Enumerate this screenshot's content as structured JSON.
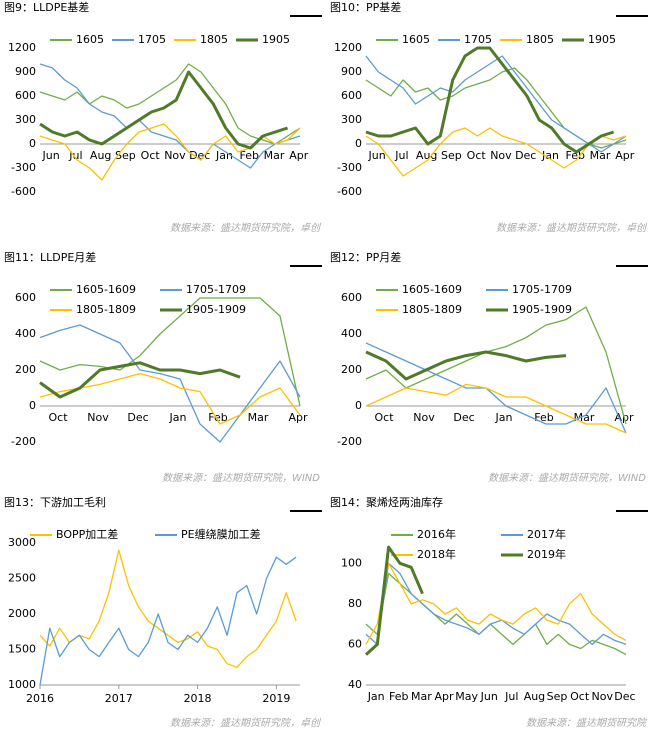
{
  "chart_data": [
    {
      "type": "line",
      "title": "图9：LLDPE基差",
      "source": "数据来源：盛达期货研究院，卓创",
      "categories": [
        "Jun",
        null,
        "Jul",
        null,
        "Aug",
        null,
        "Sep",
        null,
        "Oct",
        null,
        "Nov",
        null,
        "Dec",
        null,
        "Jan",
        null,
        "Feb",
        null,
        "Mar",
        null,
        "Apr",
        null
      ],
      "ylim": [
        -600,
        1200
      ],
      "yticks": [
        -600,
        -300,
        0,
        300,
        600,
        900,
        1200
      ],
      "series": [
        {
          "name": "1605",
          "color": "#70ad47",
          "values": [
            650,
            600,
            550,
            650,
            500,
            600,
            550,
            450,
            500,
            600,
            700,
            800,
            1000,
            900,
            700,
            500,
            200,
            100,
            50,
            0,
            100,
            200
          ]
        },
        {
          "name": "1705",
          "color": "#5b9bd5",
          "values": [
            1000,
            950,
            800,
            700,
            500,
            400,
            350,
            200,
            300,
            150,
            100,
            50,
            -100,
            -200,
            0,
            -100,
            -200,
            -300,
            -100,
            0,
            50,
            100
          ]
        },
        {
          "name": "1805",
          "color": "#ffc000",
          "values": [
            100,
            50,
            0,
            -200,
            -300,
            -450,
            -200,
            0,
            150,
            200,
            250,
            100,
            -100,
            -200,
            0,
            100,
            -100,
            -50,
            100,
            0,
            50,
            200
          ]
        },
        {
          "name": "1905",
          "color": "#4f7a28",
          "width": 3,
          "values": [
            250,
            150,
            100,
            150,
            50,
            0,
            100,
            200,
            300,
            400,
            450,
            550,
            900,
            700,
            500,
            200,
            0,
            -50,
            100,
            150,
            200,
            null
          ]
        }
      ]
    },
    {
      "type": "line",
      "title": "图10：PP基差",
      "source": "数据来源：盛达期货研究院，卓创",
      "categories": [
        "Jun",
        null,
        "Jul",
        null,
        "Aug",
        null,
        "Sep",
        null,
        "Oct",
        null,
        "Nov",
        null,
        "Dec",
        null,
        "Jan",
        null,
        "Feb",
        null,
        "Mar",
        null,
        "Apr",
        null
      ],
      "ylim": [
        -600,
        1200
      ],
      "yticks": [
        -600,
        -300,
        0,
        300,
        600,
        900,
        1200
      ],
      "series": [
        {
          "name": "1605",
          "color": "#70ad47",
          "values": [
            800,
            700,
            600,
            800,
            650,
            700,
            550,
            600,
            700,
            750,
            800,
            900,
            950,
            800,
            600,
            400,
            200,
            100,
            0,
            -50,
            0,
            50
          ]
        },
        {
          "name": "1705",
          "color": "#5b9bd5",
          "values": [
            1100,
            900,
            800,
            700,
            500,
            600,
            700,
            650,
            800,
            900,
            1000,
            1100,
            900,
            700,
            500,
            300,
            200,
            100,
            0,
            -100,
            0,
            100
          ]
        },
        {
          "name": "1805",
          "color": "#ffc000",
          "values": [
            100,
            0,
            -200,
            -400,
            -300,
            -200,
            0,
            150,
            200,
            100,
            200,
            100,
            50,
            0,
            -100,
            -200,
            -300,
            -200,
            0,
            100,
            50,
            100
          ]
        },
        {
          "name": "1905",
          "color": "#4f7a28",
          "width": 3,
          "values": [
            150,
            100,
            100,
            150,
            200,
            0,
            100,
            800,
            1100,
            1200,
            1200,
            1000,
            800,
            600,
            300,
            200,
            0,
            -100,
            0,
            100,
            150,
            null
          ]
        }
      ]
    },
    {
      "type": "line",
      "title": "图11：LLDPE月差",
      "source": "数据来源：盛达期货研究院，WIND",
      "categories": [
        "Oct",
        null,
        "Nov",
        null,
        "Dec",
        null,
        "Jan",
        null,
        "Feb",
        null,
        "Mar",
        null,
        "Apr",
        null
      ],
      "ylim": [
        -200,
        600
      ],
      "yticks": [
        -200,
        0,
        200,
        400,
        600
      ],
      "series": [
        {
          "name": "1605-1609",
          "color": "#70ad47",
          "values": [
            250,
            200,
            230,
            220,
            200,
            280,
            400,
            500,
            600,
            600,
            600,
            600,
            500,
            0
          ]
        },
        {
          "name": "1705-1709",
          "color": "#5b9bd5",
          "values": [
            380,
            420,
            450,
            400,
            350,
            200,
            180,
            150,
            -100,
            -200,
            -50,
            100,
            250,
            50
          ]
        },
        {
          "name": "1805-1809",
          "color": "#ffc000",
          "values": [
            50,
            80,
            100,
            120,
            150,
            180,
            150,
            100,
            80,
            -100,
            -50,
            50,
            100,
            -50
          ]
        },
        {
          "name": "1905-1909",
          "color": "#4f7a28",
          "width": 3,
          "values": [
            130,
            50,
            100,
            200,
            220,
            240,
            200,
            200,
            180,
            200,
            160,
            null,
            null,
            null
          ]
        }
      ]
    },
    {
      "type": "line",
      "title": "图12：PP月差",
      "source": "数据来源：盛达期货研究院，WIND",
      "categories": [
        "Oct",
        null,
        "Nov",
        null,
        "Dec",
        null,
        "Jan",
        null,
        "Feb",
        null,
        "Mar",
        null,
        "Apr",
        null
      ],
      "ylim": [
        -200,
        600
      ],
      "yticks": [
        -200,
        0,
        200,
        400,
        600
      ],
      "series": [
        {
          "name": "1605-1609",
          "color": "#70ad47",
          "values": [
            150,
            200,
            100,
            150,
            200,
            250,
            300,
            330,
            380,
            450,
            480,
            550,
            300,
            -100
          ]
        },
        {
          "name": "1705-1709",
          "color": "#5b9bd5",
          "values": [
            350,
            300,
            250,
            200,
            150,
            100,
            100,
            0,
            -50,
            -100,
            -100,
            -50,
            100,
            -150
          ]
        },
        {
          "name": "1805-1809",
          "color": "#ffc000",
          "values": [
            0,
            50,
            100,
            80,
            60,
            120,
            100,
            50,
            50,
            0,
            -50,
            -100,
            -100,
            -150
          ]
        },
        {
          "name": "1905-1909",
          "color": "#4f7a28",
          "width": 3,
          "values": [
            300,
            250,
            150,
            200,
            250,
            280,
            300,
            280,
            250,
            270,
            280,
            null,
            null,
            null
          ]
        }
      ]
    },
    {
      "type": "line",
      "title": "图13：下游加工毛利",
      "source": "数据来源：盛达期货研究院，卓创",
      "x": [
        2016,
        2016.125,
        2016.25,
        2016.375,
        2016.5,
        2016.625,
        2016.75,
        2016.875,
        2017,
        2017.125,
        2017.25,
        2017.375,
        2017.5,
        2017.625,
        2017.75,
        2017.875,
        2018,
        2018.125,
        2018.25,
        2018.375,
        2018.5,
        2018.625,
        2018.75,
        2018.875,
        2019,
        2019.125,
        2019.25
      ],
      "xlim": [
        2016,
        2019.3
      ],
      "xticks": [
        2016,
        2017,
        2018,
        2019
      ],
      "ylim": [
        1000,
        3000
      ],
      "yticks": [
        1000,
        1500,
        2000,
        2500,
        3000
      ],
      "series": [
        {
          "name": "BOPP加工差",
          "color": "#ffc000",
          "values": [
            1700,
            1550,
            1800,
            1600,
            1700,
            1650,
            1900,
            2300,
            2900,
            2400,
            2100,
            1900,
            1800,
            1700,
            1600,
            1650,
            1750,
            1550,
            1500,
            1300,
            1250,
            1400,
            1500,
            1700,
            1900,
            2300,
            1900
          ]
        },
        {
          "name": "PE缠绕膜加工差",
          "color": "#5b9bd5",
          "values": [
            1000,
            1800,
            1400,
            1600,
            1700,
            1500,
            1400,
            1600,
            1800,
            1500,
            1400,
            1600,
            2000,
            1600,
            1500,
            1700,
            1600,
            1800,
            2100,
            1700,
            2300,
            2400,
            2000,
            2500,
            2800,
            2700,
            2800
          ]
        }
      ]
    },
    {
      "type": "line",
      "title": "图14：聚烯烃两油库存",
      "source": "数据来源：盛达期货研究院",
      "categories": [
        "Jan",
        null,
        "Feb",
        null,
        "Mar",
        null,
        "Apr",
        null,
        "May",
        null,
        "Jun",
        null,
        "Jul",
        null,
        "Aug",
        null,
        "Sep",
        null,
        "Oct",
        null,
        "Nov",
        null,
        "Dec",
        null
      ],
      "ylim": [
        40,
        110
      ],
      "yticks": [
        40,
        60,
        80,
        100
      ],
      "series": [
        {
          "name": "2016年",
          "color": "#70ad47",
          "values": [
            70,
            65,
            95,
            90,
            85,
            80,
            75,
            70,
            75,
            70,
            65,
            70,
            65,
            60,
            65,
            70,
            60,
            65,
            60,
            58,
            62,
            60,
            58,
            55
          ]
        },
        {
          "name": "2017年",
          "color": "#5b9bd5",
          "values": [
            65,
            60,
            100,
            95,
            85,
            80,
            75,
            72,
            70,
            68,
            65,
            70,
            72,
            68,
            65,
            70,
            75,
            72,
            70,
            65,
            60,
            65,
            62,
            60
          ]
        },
        {
          "name": "2018年",
          "color": "#ffc000",
          "values": [
            60,
            70,
            100,
            90,
            80,
            82,
            80,
            75,
            78,
            72,
            70,
            75,
            72,
            70,
            75,
            78,
            72,
            70,
            80,
            85,
            75,
            70,
            65,
            62
          ]
        },
        {
          "name": "2019年",
          "color": "#4f7a28",
          "width": 3,
          "values": [
            55,
            60,
            108,
            100,
            98,
            85,
            null,
            null,
            null,
            null,
            null,
            null,
            null,
            null,
            null,
            null,
            null,
            null,
            null,
            null,
            null,
            null,
            null,
            null
          ]
        }
      ]
    }
  ]
}
